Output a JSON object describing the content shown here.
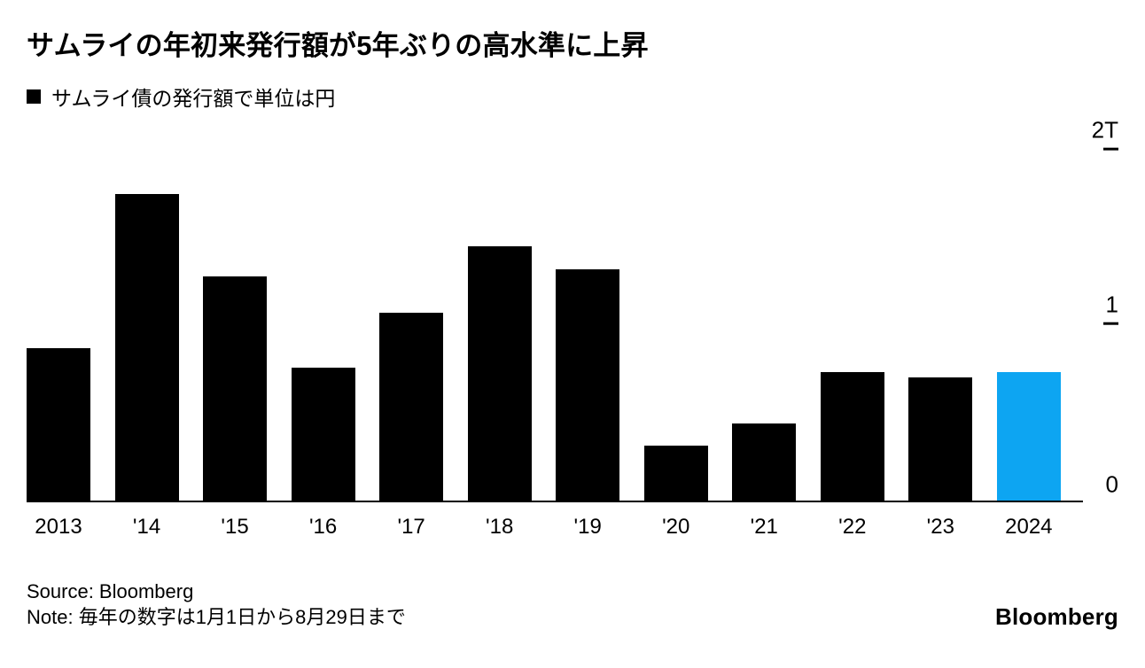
{
  "header": {
    "title": "サムライの年初来発行額が5年ぶりの高水準に上昇",
    "legend_label": "サムライ債の発行額で単位は円"
  },
  "chart_data": {
    "type": "bar",
    "title": "サムライの年初来発行額が5年ぶりの高水準に上昇",
    "legend": "サムライ債の発行額で単位は円",
    "unit": "T (trillion yen)",
    "categories": [
      "2013",
      "'14",
      "'15",
      "'16",
      "'17",
      "'18",
      "'19",
      "'20",
      "'21",
      "'22",
      "'23",
      "2024"
    ],
    "values": [
      0.87,
      1.75,
      1.28,
      0.76,
      1.07,
      1.45,
      1.32,
      0.31,
      0.44,
      0.73,
      0.7,
      0.73
    ],
    "ylim": [
      0,
      2
    ],
    "yticks": [
      {
        "value": 2,
        "label": "2T",
        "dash": true
      },
      {
        "value": 1,
        "label": "1",
        "dash": true
      },
      {
        "value": 0,
        "label": "0",
        "dash": false
      }
    ],
    "bar_color": "#000000",
    "highlight_color": "#0da5f2",
    "highlight_index": 11,
    "grid": false,
    "legend_position": "top-left",
    "yaxis_position": "right"
  },
  "footer": {
    "source": "Source: Bloomberg",
    "note": "Note: 毎年の数字は1月1日から8月29日まで",
    "logo": "Bloomberg"
  }
}
